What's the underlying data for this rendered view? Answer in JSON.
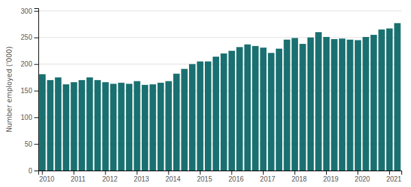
{
  "chart_data": {
    "type": "bar",
    "ylabel": "Number employed ('000)",
    "categories": [
      "2010",
      null,
      null,
      null,
      "2011",
      null,
      null,
      null,
      "2012",
      null,
      null,
      null,
      "2013",
      null,
      null,
      null,
      "2014",
      null,
      null,
      null,
      "2015",
      null,
      null,
      null,
      "2016",
      null,
      null,
      null,
      "2017",
      null,
      null,
      null,
      "2018",
      null,
      null,
      null,
      "2019",
      null,
      null,
      null,
      "2020",
      null,
      null,
      null,
      "2021",
      null
    ],
    "values": [
      181,
      170,
      175,
      162,
      166,
      170,
      175,
      170,
      166,
      163,
      165,
      163,
      168,
      161,
      162,
      165,
      168,
      182,
      191,
      200,
      205,
      205,
      214,
      220,
      225,
      232,
      237,
      234,
      231,
      221,
      229,
      246,
      249,
      238,
      250,
      260,
      251,
      247,
      248,
      246,
      245,
      251,
      255,
      265,
      267,
      277
    ],
    "color": "#1a7070",
    "ylim": [
      0,
      305
    ],
    "yticks": [
      0,
      50,
      100,
      150,
      200,
      250,
      300
    ],
    "grid": true
  }
}
